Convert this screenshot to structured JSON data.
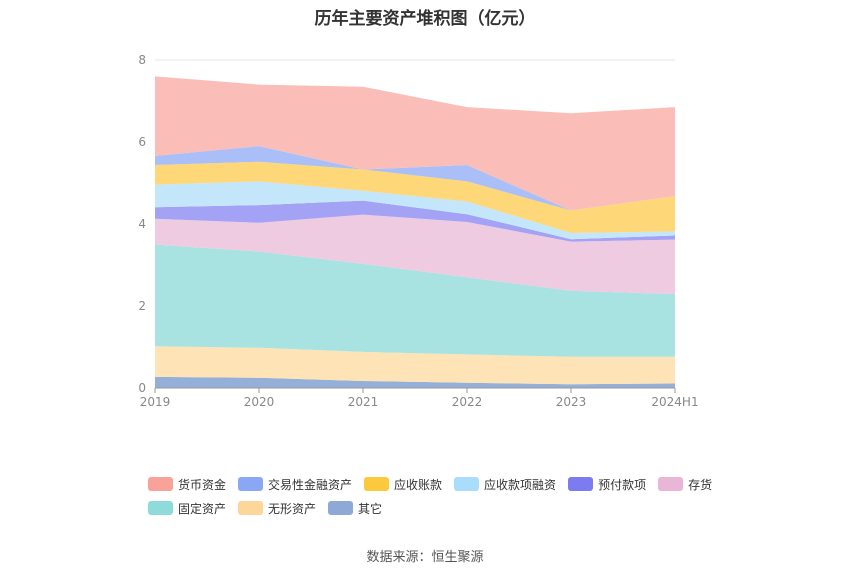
{
  "chart_data": {
    "type": "area",
    "stacked": true,
    "title": "历年主要资产堆积图（亿元）",
    "categories": [
      "2019",
      "2020",
      "2021",
      "2022",
      "2023",
      "2024H1"
    ],
    "y_ticks": [
      "0",
      "2",
      "4",
      "6",
      "8"
    ],
    "ylim": [
      0,
      8
    ],
    "series": [
      {
        "name": "其它",
        "color": "#94b0d9",
        "values": [
          0.27,
          0.25,
          0.17,
          0.13,
          0.09,
          0.11
        ]
      },
      {
        "name": "无形资产",
        "color": "#fde3b6",
        "values": [
          0.75,
          0.73,
          0.71,
          0.69,
          0.67,
          0.65
        ]
      },
      {
        "name": "固定资产",
        "color": "#a8e3e1",
        "values": [
          2.48,
          2.35,
          2.15,
          1.88,
          1.61,
          1.53
        ]
      },
      {
        "name": "存货",
        "color": "#efcbe2",
        "values": [
          0.63,
          0.7,
          1.2,
          1.35,
          1.2,
          1.33
        ]
      },
      {
        "name": "预付款项",
        "color": "#a3a2f4",
        "values": [
          0.28,
          0.43,
          0.34,
          0.19,
          0.06,
          0.1
        ]
      },
      {
        "name": "应收款项融资",
        "color": "#c3e6fb",
        "values": [
          0.55,
          0.58,
          0.24,
          0.31,
          0.15,
          0.1
        ]
      },
      {
        "name": "应收账款",
        "color": "#fdd778",
        "values": [
          0.48,
          0.48,
          0.52,
          0.49,
          0.55,
          0.86
        ]
      },
      {
        "name": "交易性金融资产",
        "color": "#aabff8",
        "values": [
          0.22,
          0.38,
          0.0,
          0.4,
          0.0,
          0.0
        ]
      },
      {
        "name": "货币资金",
        "color": "#fbbdb7",
        "values": [
          1.94,
          1.5,
          2.02,
          1.41,
          2.37,
          2.17
        ]
      }
    ],
    "legend": {
      "placement": "bottom",
      "rows": [
        [
          {
            "name": "货币资金",
            "color": "#f8a29a"
          },
          {
            "name": "交易性金融资产",
            "color": "#8aa7f6"
          },
          {
            "name": "应收账款",
            "color": "#fcc93e"
          },
          {
            "name": "应收款项融资",
            "color": "#a9ddfb"
          },
          {
            "name": "预付款项",
            "color": "#7d7bf0"
          },
          {
            "name": "存货",
            "color": "#e9b6d7"
          }
        ],
        [
          {
            "name": "固定资产",
            "color": "#8fdbd9"
          },
          {
            "name": "无形资产",
            "color": "#fdd69a"
          },
          {
            "name": "其它",
            "color": "#8fa9d6"
          }
        ]
      ]
    }
  },
  "source": "数据来源：恒生聚源"
}
